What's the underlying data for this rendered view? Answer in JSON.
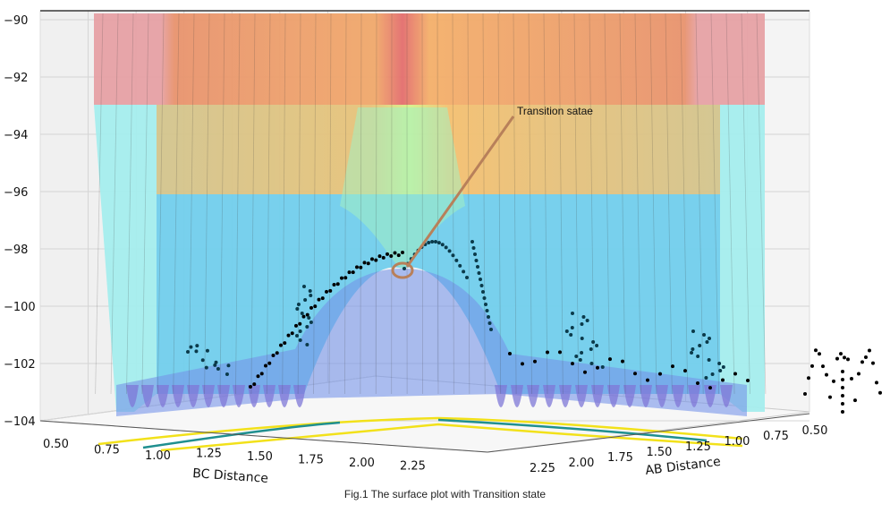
{
  "chart_data": {
    "type": "surface",
    "title": "",
    "caption": "Fig.1 The surface plot with Transition state",
    "xlabel": "BC Distance",
    "ylabel": "AB Distance",
    "zlabel": "",
    "x_ticks": [
      "0.50",
      "0.75",
      "1.00",
      "1.25",
      "1.50",
      "1.75",
      "2.00",
      "2.25"
    ],
    "y_ticks": [
      "2.25",
      "2.00",
      "1.75",
      "1.50",
      "1.25",
      "1.00",
      "0.75",
      "0.50"
    ],
    "z_ticks": [
      "−90",
      "−92",
      "−94",
      "−96",
      "−98",
      "−100",
      "−102",
      "−104"
    ],
    "xlim": [
      0.5,
      2.25
    ],
    "ylim": [
      0.5,
      2.25
    ],
    "zlim": [
      -104,
      -90
    ],
    "colormap": "jet",
    "grid": true,
    "annotation": {
      "text": "Transition satae",
      "color": "#b8805a"
    },
    "trajectory_color": "#000000",
    "floor_line_colors": [
      "#f2e11a",
      "#1f8f8f"
    ]
  }
}
